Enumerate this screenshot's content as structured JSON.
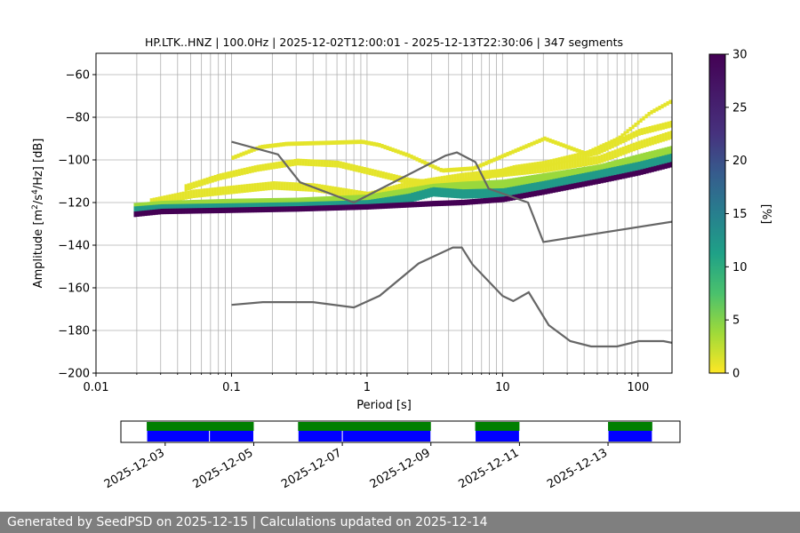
{
  "chart_data": [
    {
      "type": "heatmap",
      "title": "HP.LTK..HNZ | 100.0Hz | 2025-12-02T12:00:01 - 2025-12-13T22:30:06 | 347 segments",
      "xlabel": "Period [s]",
      "ylabel_parts": [
        "Amplitude [m",
        "2",
        "/s",
        "4",
        "/Hz] [dB]"
      ],
      "x_scale": "log",
      "xlim": [
        0.01,
        178
      ],
      "ylim": [
        -200,
        -50
      ],
      "x_ticks": [
        {
          "value": 0.01,
          "label": "0.01"
        },
        {
          "value": 0.1,
          "label": "0.1"
        },
        {
          "value": 1,
          "label": "1"
        },
        {
          "value": 10,
          "label": "10"
        },
        {
          "value": 100,
          "label": "100"
        }
      ],
      "y_ticks": [
        -200,
        -180,
        -160,
        -140,
        -120,
        -100,
        -80,
        -60
      ],
      "grid": true,
      "colorbar": {
        "label": "[%]",
        "range": [
          0,
          30
        ],
        "ticks": [
          0,
          5,
          10,
          15,
          20,
          25,
          30
        ],
        "colormap": "viridis_r"
      },
      "nlnm": {
        "name": "NLNM",
        "points": [
          [
            0.1,
            -168
          ],
          [
            0.17,
            -166.7
          ],
          [
            0.4,
            -166.7
          ],
          [
            0.8,
            -169.2
          ],
          [
            1.24,
            -163.7
          ],
          [
            2.4,
            -148.6
          ],
          [
            4.3,
            -141.1
          ],
          [
            5,
            -141.1
          ],
          [
            6,
            -149
          ],
          [
            10,
            -163.8
          ],
          [
            12,
            -166.2
          ],
          [
            15.6,
            -162.1
          ],
          [
            21.9,
            -177.5
          ],
          [
            31.6,
            -185
          ],
          [
            45,
            -187.5
          ],
          [
            70,
            -187.5
          ],
          [
            101,
            -185
          ],
          [
            154,
            -185
          ],
          [
            178,
            -185.8
          ]
        ]
      },
      "nhnm": {
        "name": "NHNM",
        "points": [
          [
            0.1,
            -91.5
          ],
          [
            0.22,
            -97.4
          ],
          [
            0.32,
            -110.5
          ],
          [
            0.8,
            -120
          ],
          [
            3.8,
            -98
          ],
          [
            4.6,
            -96.5
          ],
          [
            6.3,
            -101
          ],
          [
            7.9,
            -113.5
          ],
          [
            15.4,
            -120
          ],
          [
            20,
            -138.5
          ],
          [
            178,
            -129
          ]
        ]
      },
      "density_bands": [
        {
          "center": [
            [
              0.019,
              -125.5
            ],
            [
              0.03,
              -124.2
            ],
            [
              0.1,
              -123.6
            ],
            [
              0.3,
              -123
            ],
            [
              1,
              -122
            ],
            [
              3,
              -120.5
            ],
            [
              5,
              -120
            ],
            [
              10,
              -118.5
            ],
            [
              20,
              -115
            ],
            [
              50,
              -110
            ],
            [
              100,
              -106
            ],
            [
              178,
              -102
            ]
          ],
          "halfwidth": 1.3,
          "level": 30
        },
        {
          "center": [
            [
              0.019,
              -124
            ],
            [
              0.03,
              -123
            ],
            [
              0.1,
              -122.5
            ],
            [
              0.3,
              -122
            ],
            [
              1,
              -121
            ],
            [
              2,
              -118
            ],
            [
              3,
              -115
            ],
            [
              5,
              -116
            ],
            [
              10,
              -115.5
            ],
            [
              20,
              -112
            ],
            [
              50,
              -107
            ],
            [
              100,
              -103
            ],
            [
              178,
              -99
            ]
          ],
          "halfwidth": 2.2,
          "level": 12
        },
        {
          "center": [
            [
              0.019,
              -123
            ],
            [
              0.03,
              -122
            ],
            [
              0.1,
              -121
            ],
            [
              0.3,
              -120.5
            ],
            [
              1,
              -119
            ],
            [
              3,
              -114
            ],
            [
              5,
              -113
            ],
            [
              10,
              -112
            ],
            [
              20,
              -109
            ],
            [
              50,
              -105
            ],
            [
              100,
              -100
            ],
            [
              178,
              -96
            ]
          ],
          "halfwidth": 2.8,
          "level": 4
        },
        {
          "center": [
            [
              0.025,
              -120
            ],
            [
              0.05,
              -116
            ],
            [
              0.1,
              -114
            ],
            [
              0.2,
              -112
            ],
            [
              0.4,
              -113
            ],
            [
              1,
              -117
            ],
            [
              2,
              -112
            ],
            [
              5,
              -108
            ],
            [
              10,
              -106
            ],
            [
              20,
              -104
            ],
            [
              50,
              -100
            ],
            [
              100,
              -93
            ],
            [
              178,
              -88
            ]
          ],
          "halfwidth": 2.0,
          "level": 1
        },
        {
          "center": [
            [
              0.045,
              -113
            ],
            [
              0.08,
              -108
            ],
            [
              0.15,
              -104
            ],
            [
              0.3,
              -101
            ],
            [
              0.6,
              -102
            ],
            [
              1.1,
              -106
            ],
            [
              2,
              -110
            ],
            [
              4,
              -112
            ],
            [
              7,
              -108
            ],
            [
              12,
              -104
            ],
            [
              20,
              -102
            ],
            [
              50,
              -96
            ],
            [
              100,
              -87
            ],
            [
              178,
              -83
            ]
          ],
          "halfwidth": 1.6,
          "level": 1
        },
        {
          "center": [
            [
              0.1,
              -99
            ],
            [
              0.16,
              -94
            ],
            [
              0.25,
              -92.5
            ],
            [
              0.5,
              -92
            ],
            [
              0.9,
              -91.5
            ],
            [
              1.2,
              -93
            ],
            [
              2,
              -98
            ],
            [
              3.5,
              -105
            ],
            [
              6,
              -104
            ],
            [
              10,
              -98
            ],
            [
              20,
              -90
            ],
            [
              40,
              -97
            ],
            [
              70,
              -90
            ],
            [
              120,
              -78
            ],
            [
              178,
              -72
            ]
          ],
          "halfwidth": 1.0,
          "level": 1
        }
      ]
    },
    {
      "type": "timeline",
      "x_ticks": [
        "2025-12-03",
        "2025-12-05",
        "2025-12-07",
        "2025-12-09",
        "2025-12-11",
        "2025-12-13"
      ],
      "x_range": [
        "2025-12-02T00:00",
        "2025-12-14T15:00"
      ],
      "data_segments": [
        [
          "2025-12-02T14:00",
          "2025-12-05T00:00"
        ],
        [
          "2025-12-06T00:00",
          "2025-12-09T00:00"
        ],
        [
          "2025-12-10T00:00",
          "2025-12-11T00:00"
        ],
        [
          "2025-12-13T00:00",
          "2025-12-14T00:00"
        ]
      ],
      "psd_segments": [
        [
          "2025-12-02T14:00",
          "2025-12-04T00:00"
        ],
        [
          "2025-12-04T00:00",
          "2025-12-05T00:00"
        ],
        [
          "2025-12-06T00:00",
          "2025-12-07T00:00"
        ],
        [
          "2025-12-07T00:00",
          "2025-12-09T00:00"
        ],
        [
          "2025-12-10T00:00",
          "2025-12-11T00:00"
        ],
        [
          "2025-12-13T00:00",
          "2025-12-14T00:00"
        ]
      ],
      "colors": {
        "data": "#007f00",
        "psd": "#0000ff"
      }
    }
  ],
  "footer": "Generated by SeedPSD on 2025-12-15 | Calculations updated on 2025-12-14"
}
